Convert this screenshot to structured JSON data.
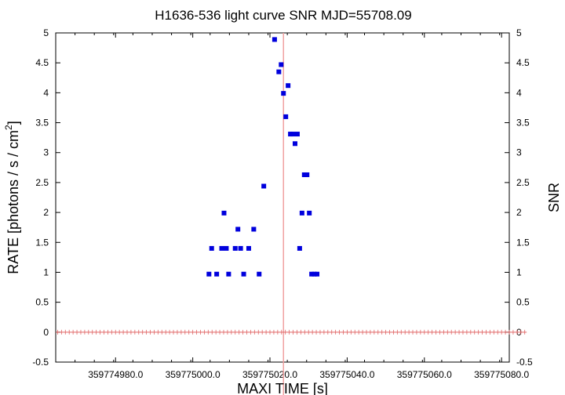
{
  "chart_data": {
    "type": "scatter",
    "title": "H1636-536 light curve  SNR MJD=55708.09",
    "xlabel": "MAXI TIME [s]",
    "ylabel": "RATE [photons / s / cm",
    "ylabel_sup": "2",
    "ylabel_close": "]",
    "y2label": "SNR",
    "xlim": [
      359774964.5,
      359775082.0
    ],
    "ylim": [
      -0.5,
      5
    ],
    "x_ticks": [
      359774980.0,
      359775000.0,
      359775020.0,
      359775040.0,
      359775060.0,
      359775080.0
    ],
    "x_tick_labels": [
      "359774980.0",
      "359775000.0",
      "359775020.0",
      "359775040.0",
      "359775060.0",
      "359775080.0"
    ],
    "y_ticks": [
      -0.5,
      0,
      0.5,
      1,
      1.5,
      2,
      2.5,
      3,
      3.5,
      4,
      4.5,
      5
    ],
    "y_tick_labels": [
      "-0.5",
      "0",
      "0.5",
      "1",
      "1.5",
      "2",
      "2.5",
      "3",
      "3.5",
      "4",
      "4.5",
      "5"
    ],
    "vline_x": 359775023.5,
    "colors": {
      "rate": "#e06666",
      "snr": "#0000dd",
      "vline": "#f0a0a0"
    },
    "series": [
      {
        "kind": "rate_step_with_errors",
        "x_start": 359774964.5,
        "step": 1.0,
        "values": [
          0,
          0,
          0,
          0,
          0,
          0,
          0,
          0,
          0,
          0,
          0,
          0,
          0,
          0,
          0,
          0,
          0,
          0,
          0,
          0,
          0,
          0,
          0,
          0,
          0,
          0,
          0,
          0,
          0,
          0,
          0,
          0,
          0,
          0,
          0,
          0,
          0,
          0,
          0,
          0,
          0,
          0,
          0,
          0,
          0,
          0,
          0,
          0,
          0,
          0,
          0,
          0,
          0,
          0,
          0,
          0,
          0,
          0,
          0,
          0,
          0,
          0,
          0,
          0,
          0,
          0,
          0,
          0,
          0,
          0,
          0,
          0,
          0,
          0,
          0,
          0,
          0,
          0,
          0,
          0,
          0,
          0,
          0,
          0,
          0,
          0,
          0,
          0,
          0,
          0,
          0,
          0,
          0,
          0,
          0,
          0,
          0,
          0,
          0,
          0,
          0,
          0,
          0,
          0,
          0,
          0,
          0,
          0,
          0,
          0,
          0,
          0,
          0,
          0,
          0,
          0,
          0,
          0,
          0,
          0,
          0,
          0
        ],
        "errors": []
      },
      {
        "kind": "snr_points",
        "x": [
          359775004.2,
          359775004.9,
          359775006.2,
          359775007.5,
          359775008.1,
          359775008.7,
          359775009.3,
          359775011.0,
          359775011.7,
          359775012.4,
          359775013.2,
          359775014.5,
          359775015.8,
          359775017.2,
          359775018.4,
          359775021.2,
          359775022.3,
          359775022.9,
          359775023.5,
          359775024.1,
          359775024.7,
          359775025.3,
          359775025.9,
          359775026.5,
          359775027.1,
          359775027.7,
          359775028.3,
          359775028.9,
          359775029.6,
          359775030.2,
          359775030.8,
          359775031.5,
          359775032.2
        ],
        "y": [
          0.97,
          1.4,
          0.97,
          1.4,
          1.99,
          1.4,
          0.97,
          1.4,
          1.72,
          1.4,
          0.97,
          1.4,
          1.72,
          0.97,
          2.44,
          4.89,
          4.35,
          4.47,
          3.99,
          3.6,
          4.12,
          3.31,
          3.31,
          3.15,
          3.31,
          1.4,
          1.99,
          2.63,
          2.63,
          1.99,
          0.97,
          0.97,
          0.97
        ]
      }
    ]
  }
}
